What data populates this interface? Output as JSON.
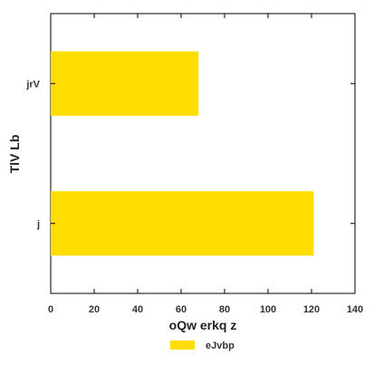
{
  "chart_data": {
    "type": "bar",
    "orientation": "horizontal",
    "categories": [
      "j",
      "jrV"
    ],
    "series": [
      {
        "name": "eJvbp",
        "values": [
          121,
          68
        ],
        "color": "#FFDD00"
      }
    ],
    "xlabel": "oQw erkq z",
    "ylabel": "TlV Lb",
    "xlim": [
      0,
      140
    ],
    "xticks": [
      "0",
      "20",
      "40",
      "60",
      "80",
      "100",
      "120",
      "140"
    ],
    "grid": false,
    "legend_position": "bottom-center"
  }
}
